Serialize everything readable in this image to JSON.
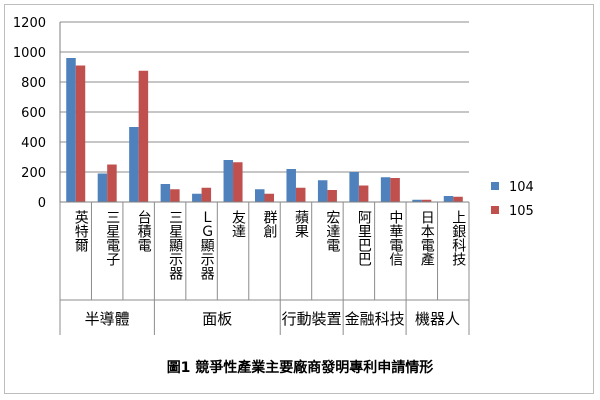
{
  "chart_data": {
    "type": "bar",
    "title": "",
    "caption": "圖1 競爭性產業主要廠商發明專利申請情形",
    "ylim": [
      0,
      1200
    ],
    "yticks": [
      "0",
      "200",
      "400",
      "600",
      "800",
      "1000",
      "1200"
    ],
    "grid": true,
    "legend_position": "right",
    "categories": [
      "英特爾",
      "三星電子",
      "台積電",
      "三星顯示器",
      "ＬＧ顯示器",
      "友達",
      "群創",
      "蘋果",
      "宏達電",
      "阿里巴巴",
      "中華電信",
      "日本電產",
      "上銀科技"
    ],
    "groups": [
      {
        "label": "半導體",
        "count": 3
      },
      {
        "label": "面板",
        "count": 4
      },
      {
        "label": "行動裝置",
        "count": 2
      },
      {
        "label": "金融科技",
        "count": 2
      },
      {
        "label": "機器人",
        "count": 2
      }
    ],
    "series": [
      {
        "name": "104",
        "color": "#4f81bd",
        "values": [
          960,
          190,
          500,
          120,
          55,
          280,
          85,
          220,
          145,
          200,
          165,
          15,
          40
        ]
      },
      {
        "name": "105",
        "color": "#c0504d",
        "values": [
          910,
          250,
          875,
          85,
          95,
          265,
          55,
          95,
          80,
          110,
          160,
          15,
          35
        ]
      }
    ]
  }
}
